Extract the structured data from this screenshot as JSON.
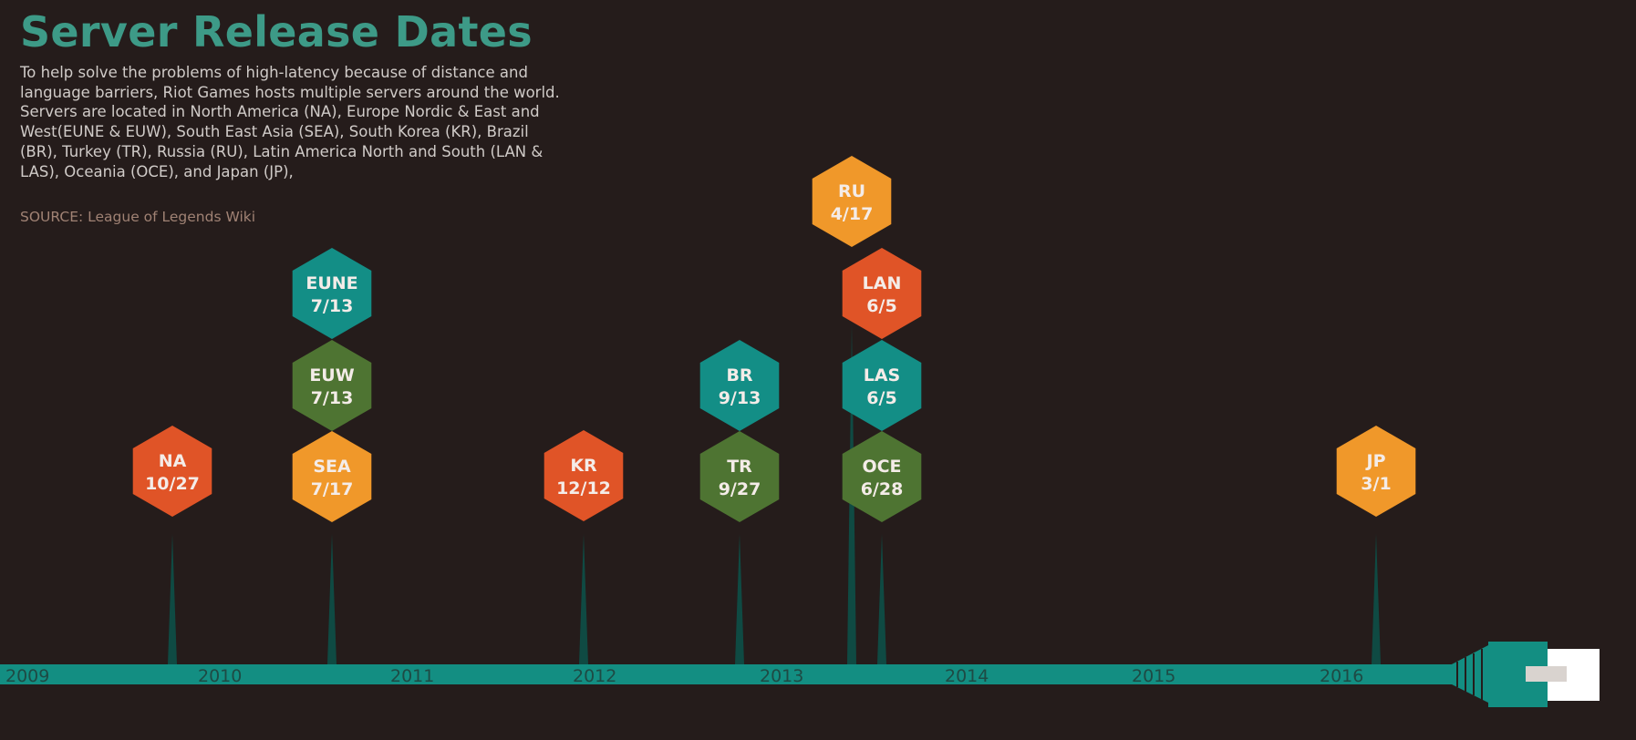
{
  "title": "Server Release Dates",
  "description": "To help solve the problems of high-latency because of distance and language barriers, Riot Games hosts multiple servers around the world. Servers are located in North America (NA), Europe Nordic & East and West(EUNE & EUW), South East Asia (SEA), South Korea (KR), Brazil (BR), Turkey (TR), Russia (RU), Latin America North and South (LAN & LAS), Oceania (OCE), and Japan (JP),",
  "source": "SOURCE: League of Legends Wiki",
  "colors": {
    "background": "#251c1b",
    "title": "#3d9a87",
    "timeline": "#138e82",
    "spike": "#0f4a43",
    "orange_red": "#e05427",
    "orange": "#f0982a",
    "teal": "#138e86",
    "green": "#4e7432"
  },
  "years": [
    "2009",
    "2010",
    "2011",
    "2012",
    "2013",
    "2014",
    "2015",
    "2016"
  ],
  "servers": [
    {
      "code": "NA",
      "date": "10/27",
      "year": 2009,
      "color": "orange_red"
    },
    {
      "code": "EUNE",
      "date": "7/13",
      "year": 2010,
      "color": "teal"
    },
    {
      "code": "EUW",
      "date": "7/13",
      "year": 2010,
      "color": "green"
    },
    {
      "code": "SEA",
      "date": "7/17",
      "year": 2010,
      "color": "orange"
    },
    {
      "code": "KR",
      "date": "12/12",
      "year": 2011,
      "color": "orange_red"
    },
    {
      "code": "BR",
      "date": "9/13",
      "year": 2012,
      "color": "teal"
    },
    {
      "code": "TR",
      "date": "9/27",
      "year": 2012,
      "color": "green"
    },
    {
      "code": "RU",
      "date": "4/17",
      "year": 2013,
      "color": "orange"
    },
    {
      "code": "LAN",
      "date": "6/5",
      "year": 2013,
      "color": "orange_red"
    },
    {
      "code": "LAS",
      "date": "6/5",
      "year": 2013,
      "color": "teal"
    },
    {
      "code": "OCE",
      "date": "6/28",
      "year": 2013,
      "color": "green"
    },
    {
      "code": "JP",
      "date": "3/1",
      "year": 2016,
      "color": "orange"
    }
  ]
}
